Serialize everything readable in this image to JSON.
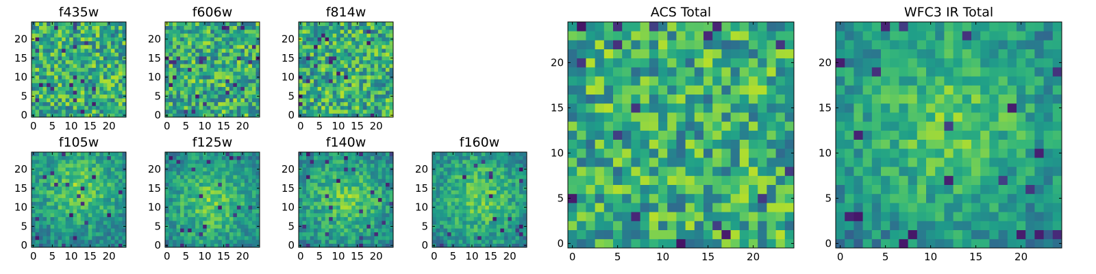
{
  "chart_data": [
    {
      "type": "heatmap",
      "title": "f435w",
      "xticks": [
        "0",
        "5",
        "10",
        "15",
        "20"
      ],
      "yticks": [
        "0",
        "5",
        "10",
        "15",
        "20"
      ],
      "xlim": [
        0,
        25
      ],
      "ylim": [
        0,
        25
      ],
      "grid": false,
      "colormap": "viridis",
      "pattern": "noise",
      "seed": 11
    },
    {
      "type": "heatmap",
      "title": "f606w",
      "xticks": [
        "0",
        "5",
        "10",
        "15",
        "20"
      ],
      "yticks": [
        "0",
        "5",
        "10",
        "15",
        "20"
      ],
      "xlim": [
        0,
        25
      ],
      "ylim": [
        0,
        25
      ],
      "grid": false,
      "colormap": "viridis",
      "pattern": "noise",
      "seed": 23
    },
    {
      "type": "heatmap",
      "title": "f814w",
      "xticks": [
        "0",
        "5",
        "10",
        "15",
        "20"
      ],
      "yticks": [
        "0",
        "5",
        "10",
        "15",
        "20"
      ],
      "xlim": [
        0,
        25
      ],
      "ylim": [
        0,
        25
      ],
      "grid": false,
      "colormap": "viridis",
      "pattern": "noise",
      "seed": 37
    },
    {
      "type": "heatmap",
      "title": "f105w",
      "xticks": [
        "0",
        "5",
        "10",
        "15",
        "20"
      ],
      "yticks": [
        "0",
        "5",
        "10",
        "15",
        "20"
      ],
      "xlim": [
        0,
        25
      ],
      "ylim": [
        0,
        25
      ],
      "grid": false,
      "colormap": "viridis",
      "pattern": "blob",
      "seed": 41
    },
    {
      "type": "heatmap",
      "title": "f125w",
      "xticks": [
        "0",
        "5",
        "10",
        "15",
        "20"
      ],
      "yticks": [
        "0",
        "5",
        "10",
        "15",
        "20"
      ],
      "xlim": [
        0,
        25
      ],
      "ylim": [
        0,
        25
      ],
      "grid": false,
      "colormap": "viridis",
      "pattern": "blob",
      "seed": 53
    },
    {
      "type": "heatmap",
      "title": "f140w",
      "xticks": [
        "0",
        "5",
        "10",
        "15",
        "20"
      ],
      "yticks": [
        "0",
        "5",
        "10",
        "15",
        "20"
      ],
      "xlim": [
        0,
        25
      ],
      "ylim": [
        0,
        25
      ],
      "grid": false,
      "colormap": "viridis",
      "pattern": "blob",
      "seed": 67
    },
    {
      "type": "heatmap",
      "title": "f160w",
      "xticks": [
        "0",
        "5",
        "10",
        "15",
        "20"
      ],
      "yticks": [
        "0",
        "5",
        "10",
        "15",
        "20"
      ],
      "xlim": [
        0,
        25
      ],
      "ylim": [
        0,
        25
      ],
      "grid": false,
      "colormap": "viridis",
      "pattern": "blob",
      "seed": 79
    },
    {
      "type": "heatmap",
      "title": "ACS Total",
      "xticks": [
        "0",
        "5",
        "10",
        "15",
        "20"
      ],
      "yticks": [
        "0",
        "5",
        "10",
        "15",
        "20"
      ],
      "xlim": [
        0,
        25
      ],
      "ylim": [
        0,
        25
      ],
      "grid": false,
      "colormap": "viridis",
      "pattern": "noise",
      "seed": 97
    },
    {
      "type": "heatmap",
      "title": "WFC3 IR Total",
      "xticks": [
        "0",
        "5",
        "10",
        "15",
        "20"
      ],
      "yticks": [
        "0",
        "5",
        "10",
        "15",
        "20"
      ],
      "xlim": [
        0,
        25
      ],
      "ylim": [
        0,
        25
      ],
      "grid": false,
      "colormap": "viridis",
      "pattern": "blob",
      "seed": 113
    }
  ]
}
